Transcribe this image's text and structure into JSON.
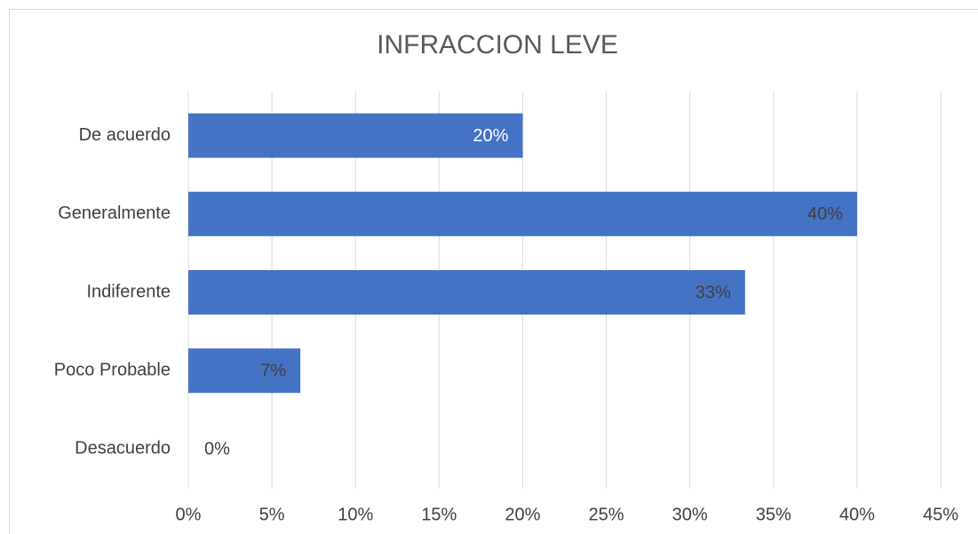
{
  "chart_data": {
    "type": "bar",
    "orientation": "horizontal",
    "title": "INFRACCION LEVE",
    "categories": [
      "De acuerdo",
      "Generalmente",
      "Indiferente",
      "Poco Probable",
      "Desacuerdo"
    ],
    "values": [
      20,
      40,
      33.3,
      6.7,
      0
    ],
    "value_labels": [
      "20%",
      "40%",
      "33%",
      "7%",
      "0%"
    ],
    "value_label_colors": [
      "#ffffff",
      "#404040",
      "#404040",
      "#404040",
      "#404040"
    ],
    "color": "#4472c4",
    "xlim": [
      0,
      45
    ],
    "xticks": [
      {
        "value": 0,
        "label": "0%"
      },
      {
        "value": 5,
        "label": "5%"
      },
      {
        "value": 10,
        "label": "10%"
      },
      {
        "value": 15,
        "label": "15%"
      },
      {
        "value": 20,
        "label": "20%"
      },
      {
        "value": 25,
        "label": "25%"
      },
      {
        "value": 30,
        "label": "30%"
      },
      {
        "value": 35,
        "label": "35%"
      },
      {
        "value": 40,
        "label": "40%"
      },
      {
        "value": 45,
        "label": "45%"
      }
    ],
    "grid": true
  }
}
